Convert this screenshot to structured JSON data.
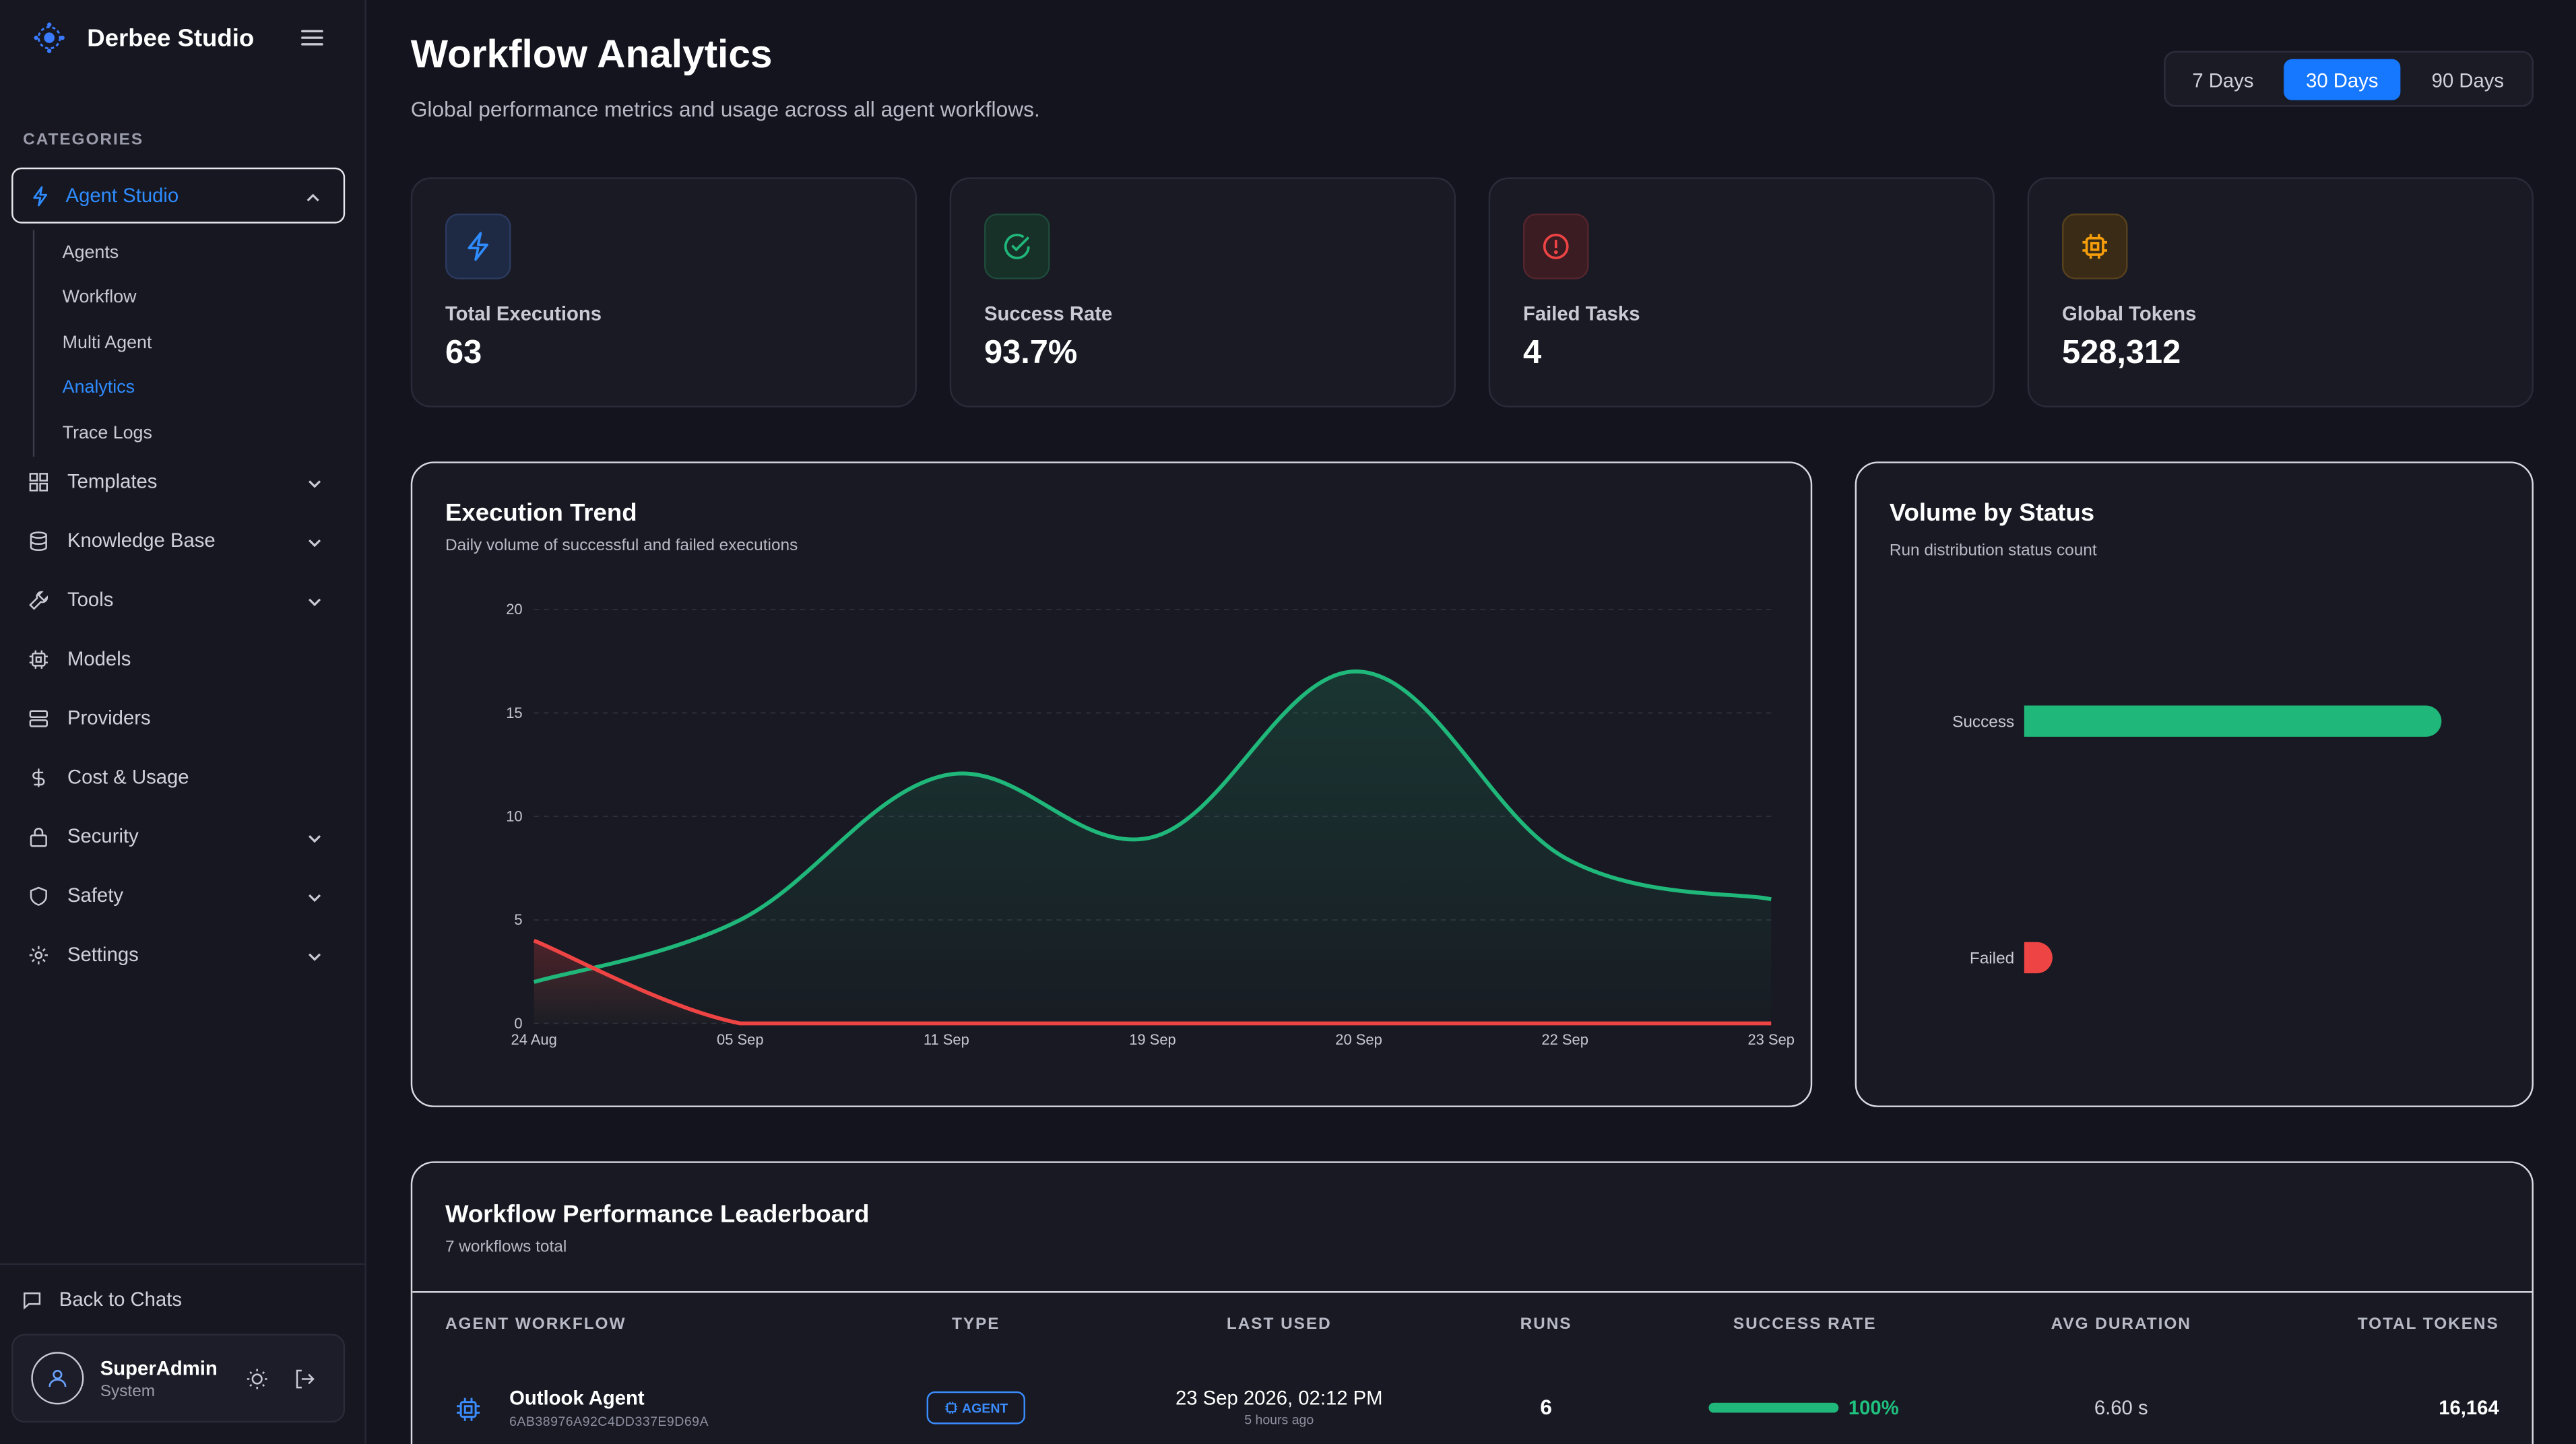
{
  "app": {
    "name": "Derbee Studio"
  },
  "sidebar": {
    "categories_title": "CATEGORIES",
    "active_group": "Agent Studio",
    "sub_items": [
      "Agents",
      "Workflow",
      "Multi Agent",
      "Analytics",
      "Trace Logs"
    ],
    "active_sub": "Analytics",
    "items": [
      {
        "label": "Templates",
        "icon": "grid-icon",
        "expandable": true
      },
      {
        "label": "Knowledge Base",
        "icon": "database-icon",
        "expandable": true
      },
      {
        "label": "Tools",
        "icon": "wrench-icon",
        "expandable": true
      },
      {
        "label": "Models",
        "icon": "chip-icon",
        "expandable": false
      },
      {
        "label": "Providers",
        "icon": "server-icon",
        "expandable": false
      },
      {
        "label": "Cost & Usage",
        "icon": "dollar-icon",
        "expandable": false
      },
      {
        "label": "Security",
        "icon": "lock-icon",
        "expandable": true
      },
      {
        "label": "Safety",
        "icon": "shield-icon",
        "expandable": true
      },
      {
        "label": "Settings",
        "icon": "gear-icon",
        "expandable": true
      }
    ],
    "back_to_chats": "Back to Chats",
    "user": {
      "name": "SuperAdmin",
      "role": "System"
    }
  },
  "header": {
    "title": "Workflow Analytics",
    "subtitle": "Global performance metrics and usage across all agent workflows.",
    "ranges": [
      "7 Days",
      "30 Days",
      "90 Days"
    ],
    "active_range": "30 Days"
  },
  "stats": [
    {
      "label": "Total Executions",
      "value": "63",
      "icon": "bolt-icon",
      "color": "#2f8cff"
    },
    {
      "label": "Success Rate",
      "value": "93.7%",
      "icon": "check-circle-icon",
      "color": "#20b77a"
    },
    {
      "label": "Failed Tasks",
      "value": "4",
      "icon": "alert-circle-icon",
      "color": "#ef4444"
    },
    {
      "label": "Global Tokens",
      "value": "528,312",
      "icon": "chip-icon",
      "color": "#f59e0b"
    }
  ],
  "trend": {
    "title": "Execution Trend",
    "subtitle": "Daily volume of successful and failed executions"
  },
  "volume": {
    "title": "Volume by Status",
    "subtitle": "Run distribution status count"
  },
  "chart_data": [
    {
      "type": "area",
      "title": "Execution Trend",
      "x": [
        "24 Aug",
        "05 Sep",
        "11 Sep",
        "19 Sep",
        "20 Sep",
        "22 Sep",
        "23 Sep"
      ],
      "ylim": [
        0,
        20
      ],
      "yticks": [
        0,
        5,
        10,
        15,
        20
      ],
      "grid": true,
      "series": [
        {
          "name": "Success",
          "color": "#20b77a",
          "values": [
            2,
            5,
            12,
            9,
            17,
            8,
            6
          ]
        },
        {
          "name": "Failed",
          "color": "#ef4444",
          "values": [
            4,
            0,
            0,
            0,
            0,
            0,
            0
          ]
        }
      ]
    },
    {
      "type": "bar",
      "title": "Volume by Status",
      "orientation": "horizontal",
      "categories": [
        "Success",
        "Failed"
      ],
      "values": [
        59,
        4
      ],
      "colors": [
        "#20b77a",
        "#ef4444"
      ]
    }
  ],
  "leaderboard": {
    "title": "Workflow Performance Leaderboard",
    "subtitle": "7 workflows total",
    "columns": [
      "AGENT WORKFLOW",
      "TYPE",
      "LAST USED",
      "RUNS",
      "SUCCESS RATE",
      "AVG DURATION",
      "TOTAL TOKENS"
    ],
    "rows": [
      {
        "name": "Outlook Agent",
        "id": "6AB38976A92C4DD337E9D69A",
        "type": "AGENT",
        "last_used": "23 Sep 2026, 02:12 PM",
        "last_used_rel": "5 hours ago",
        "runs": "6",
        "success_rate": "100%",
        "success_fraction": 1.0,
        "avg_duration": "6.60 s",
        "total_tokens": "16,164"
      }
    ]
  }
}
